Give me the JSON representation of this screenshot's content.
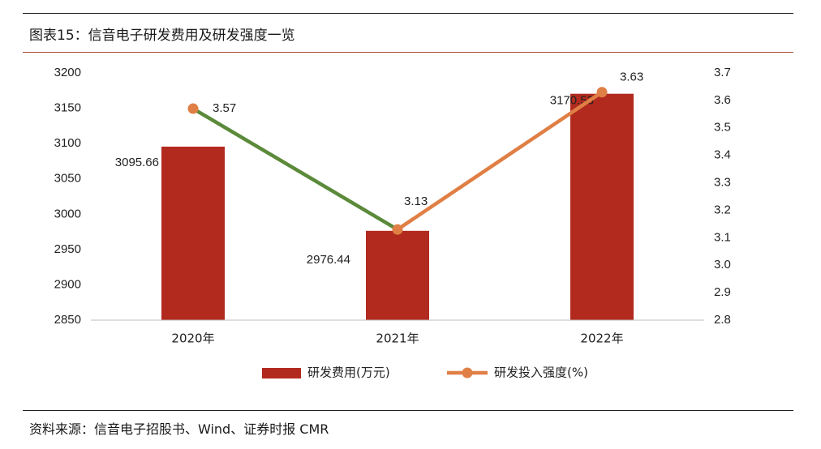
{
  "figure_title": "图表15：信音电子研发费用及研发强度一览",
  "source_note": "资料来源：信音电子招股书、Wind、证券时报 CMR",
  "chart_data": {
    "type": "bar",
    "categories": [
      "2020年",
      "2021年",
      "2022年"
    ],
    "series": [
      {
        "name": "研发费用(万元)",
        "kind": "bar",
        "axis": "left",
        "values": [
          3095.66,
          2976.44,
          3170.53
        ],
        "labels": [
          "3095.66",
          "2976.44",
          "3170.53"
        ],
        "color": "#b22a1e"
      },
      {
        "name": "研发投入强度(%)",
        "kind": "line",
        "axis": "right",
        "values": [
          3.57,
          3.13,
          3.63
        ],
        "labels": [
          "3.57",
          "3.13",
          "3.63"
        ],
        "color": "#e07f45",
        "segment_colors": [
          "#5b8a3a",
          "#e07f45"
        ]
      }
    ],
    "y_left": {
      "min": 2850,
      "max": 3200,
      "ticks": [
        "2850",
        "2900",
        "2950",
        "3000",
        "3050",
        "3100",
        "3150",
        "3200"
      ]
    },
    "y_right": {
      "min": 2.8,
      "max": 3.7,
      "ticks": [
        "2.8",
        "2.9",
        "3.0",
        "3.1",
        "3.2",
        "3.3",
        "3.4",
        "3.5",
        "3.6",
        "3.7"
      ]
    },
    "legend_position": "bottom-center",
    "grid": false
  }
}
